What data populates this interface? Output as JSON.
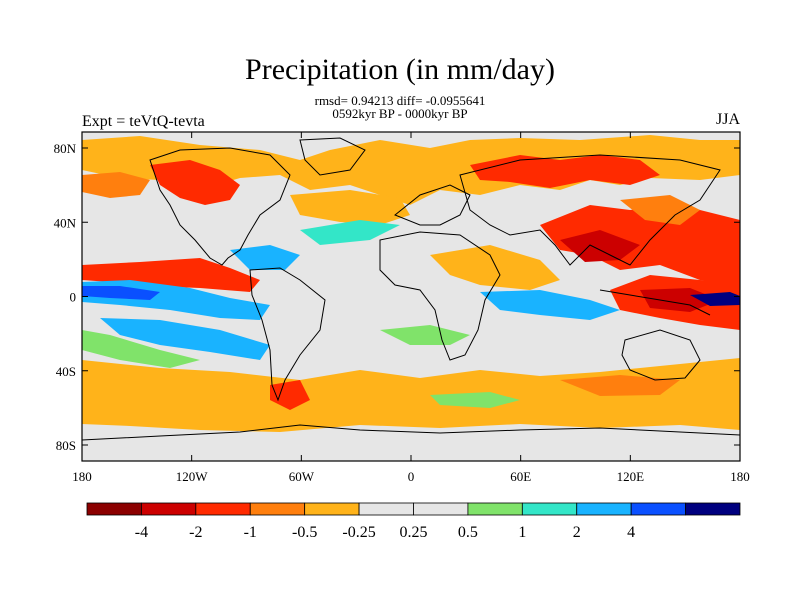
{
  "title": "Precipitation (in mm/day)",
  "stats_line": "rmsd= 0.94213 diff= -0.0955641",
  "period_line": "0592kyr BP - 0000kyr BP",
  "left_label": "Expt = teVtQ-tevta",
  "right_label": "JJA",
  "lon_ticks": [
    "180",
    "120W",
    "60W",
    "0",
    "60E",
    "120E",
    "180"
  ],
  "lat_ticks": [
    "80N",
    "40N",
    "0",
    "40S",
    "80S"
  ],
  "colorbar": {
    "colors": [
      "#8b0000",
      "#cc0000",
      "#ff2a00",
      "#ff7f0e",
      "#ffb31a",
      "#e6e6e6",
      "#e6e6e6",
      "#80e36a",
      "#33e6c8",
      "#19b3ff",
      "#0a50ff",
      "#00007f"
    ],
    "labels": [
      "-4",
      "-2",
      "-1",
      "-0.5",
      "-0.25",
      "0.25",
      "0.5",
      "1",
      "2",
      "4"
    ]
  },
  "colors": {
    "land_outline": "#000000",
    "neutral": "#e6e6e6"
  }
}
